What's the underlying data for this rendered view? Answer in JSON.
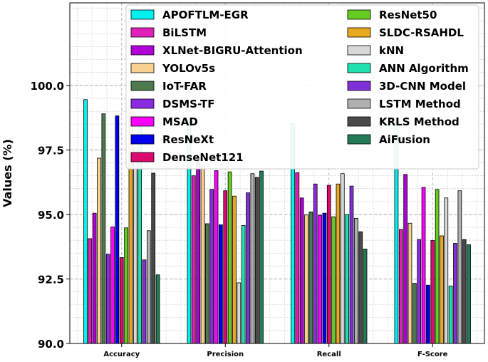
{
  "chart_data": {
    "type": "bar",
    "title": "",
    "xlabel": "",
    "ylabel": "Values (%)",
    "ylim": [
      90,
      103.2
    ],
    "yticks": [
      "90.0",
      "92.5",
      "95.0",
      "97.5",
      "100.0"
    ],
    "ytick_values": [
      90.0,
      92.5,
      95.0,
      97.5,
      100.0
    ],
    "grid": true,
    "legend_position": "top-center",
    "categories": [
      "Accuracy",
      "Precision",
      "Recall",
      "F-Score"
    ],
    "series": [
      {
        "name": "APOFTLM-EGR",
        "color": "#00f0f0",
        "values": [
          99.45,
          98.72,
          98.52,
          98.58
        ]
      },
      {
        "name": "BiLSTM",
        "color": "#e020b8",
        "values": [
          94.06,
          96.5,
          96.62,
          94.42
        ]
      },
      {
        "name": "XLNet-BIGRU-Attention",
        "color": "#b000d8",
        "values": [
          95.05,
          97.2,
          95.64,
          96.55
        ]
      },
      {
        "name": "YOLOv5s",
        "color": "#f8d090",
        "values": [
          97.18,
          96.91,
          94.98,
          94.66
        ]
      },
      {
        "name": "IoT-FAR",
        "color": "#4e7b4e",
        "values": [
          98.9,
          94.64,
          95.1,
          92.33
        ]
      },
      {
        "name": "DSMS-TF",
        "color": "#8a2be2",
        "values": [
          93.46,
          95.97,
          96.18,
          94.03
        ]
      },
      {
        "name": "MSAD",
        "color": "#ff00ff",
        "values": [
          94.52,
          96.7,
          94.97,
          96.05
        ]
      },
      {
        "name": "ResNeXt",
        "color": "#0000ee",
        "values": [
          98.82,
          94.6,
          95.05,
          92.26
        ]
      },
      {
        "name": "DenseNet121",
        "color": "#dc0a6e",
        "values": [
          93.33,
          95.92,
          96.13,
          93.99
        ]
      },
      {
        "name": "ResNet50",
        "color": "#66cc22",
        "values": [
          94.48,
          96.65,
          94.91,
          95.97
        ]
      },
      {
        "name": "SLDC-RSAHDL",
        "color": "#e8a820",
        "values": [
          99.22,
          95.71,
          96.18,
          94.17
        ]
      },
      {
        "name": "kNN",
        "color": "#d8d8d8",
        "values": [
          97.55,
          92.35,
          96.58,
          95.64
        ]
      },
      {
        "name": "ANN Algorithm",
        "color": "#20e0b0",
        "values": [
          98.76,
          94.57,
          95.0,
          92.23
        ]
      },
      {
        "name": "3D-CNN Model",
        "color": "#8030d8",
        "values": [
          93.24,
          95.84,
          96.1,
          93.88
        ]
      },
      {
        "name": "LSTM Method",
        "color": "#b0b0b0",
        "values": [
          94.37,
          96.58,
          94.85,
          95.92
        ]
      },
      {
        "name": "KRLS Method",
        "color": "#4a4a4a",
        "values": [
          96.6,
          96.44,
          94.33,
          94.03
        ]
      },
      {
        "name": "AiFusion",
        "color": "#237a56",
        "values": [
          92.66,
          96.68,
          93.66,
          93.83
        ]
      }
    ]
  }
}
